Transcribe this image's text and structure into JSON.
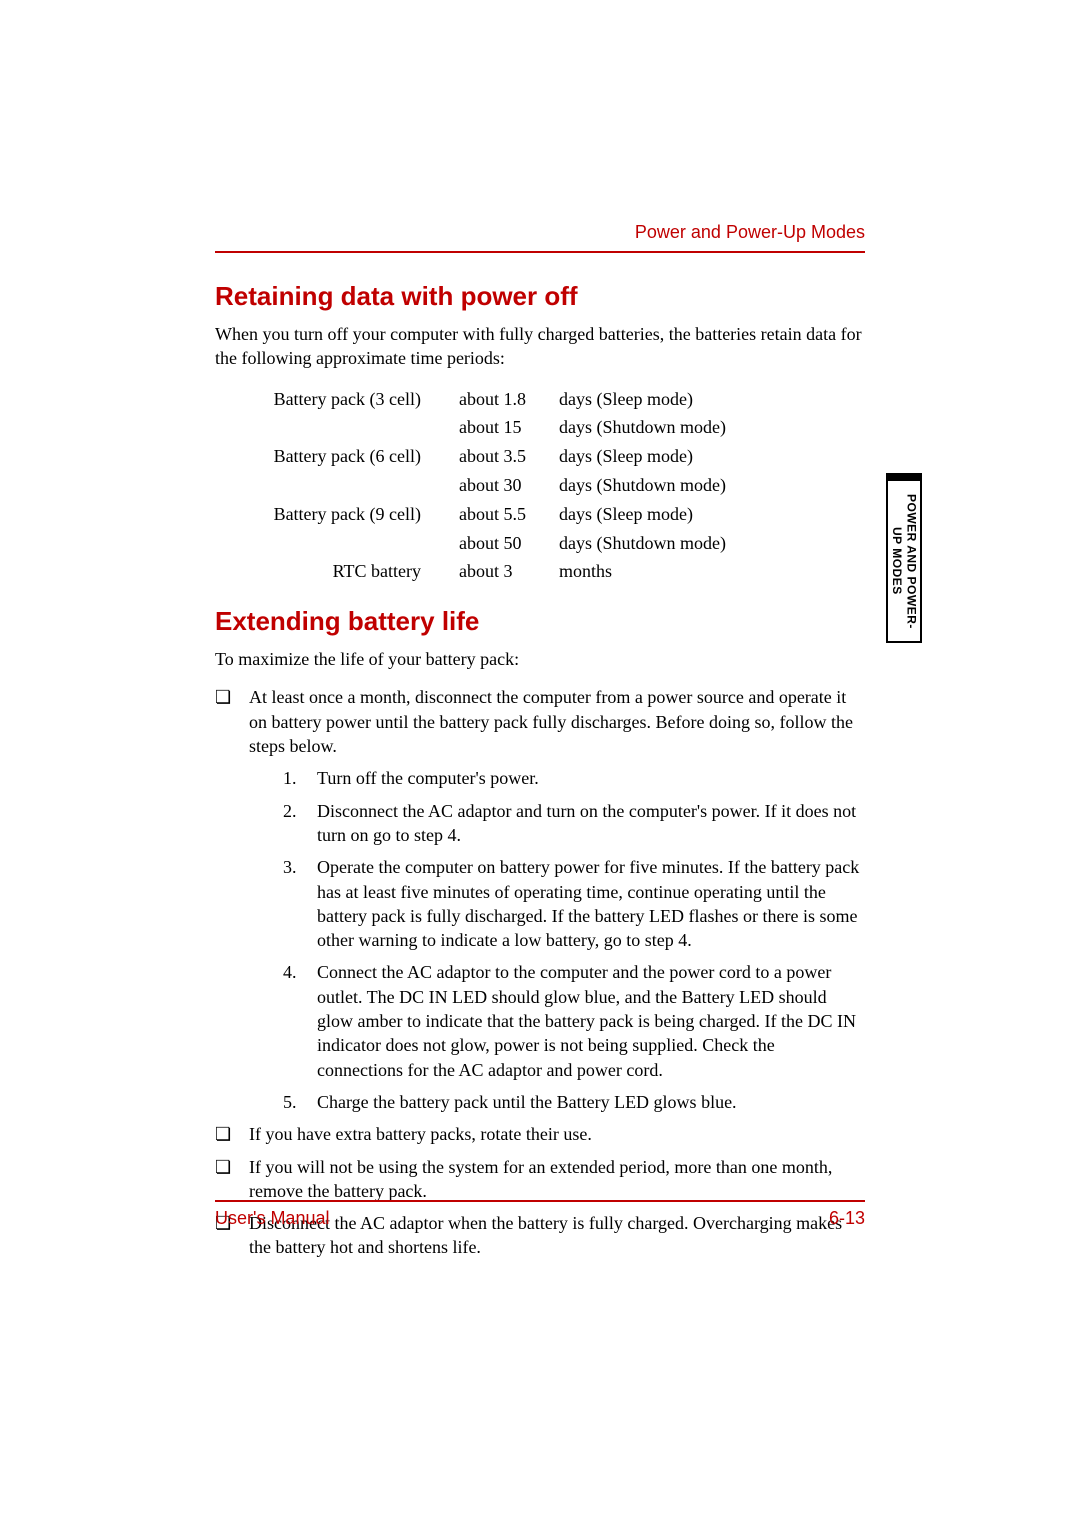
{
  "header": {
    "label": "Power and Power-Up Modes"
  },
  "section1": {
    "heading": "Retaining data with power off",
    "intro": "When you turn off your computer with fully charged batteries, the batteries retain data for the following approximate time periods:",
    "rows": [
      {
        "c1": "Battery pack (3 cell)",
        "c2": "about 1.8",
        "c3": "days (Sleep mode)"
      },
      {
        "c1": "",
        "c2": "about 15",
        "c3": "days (Shutdown mode)"
      },
      {
        "c1": "Battery pack (6 cell)",
        "c2": "about 3.5",
        "c3": "days (Sleep mode)"
      },
      {
        "c1": "",
        "c2": "about 30",
        "c3": "days (Shutdown mode)"
      },
      {
        "c1": "Battery pack (9 cell)",
        "c2": "about 5.5",
        "c3": "days (Sleep mode)"
      },
      {
        "c1": "",
        "c2": "about 50",
        "c3": "days (Shutdown mode)"
      },
      {
        "c1": "RTC battery",
        "c2": "about 3",
        "c3": "months"
      }
    ]
  },
  "section2": {
    "heading": "Extending battery life",
    "intro": "To maximize the life of your battery pack:",
    "bullets": [
      {
        "text": "At least once a month, disconnect the computer from a power source and operate it on battery power until the battery pack fully discharges. Before doing so, follow the steps below.",
        "steps": [
          "Turn off the computer's power.",
          "Disconnect the AC adaptor and turn on the computer's power. If it does not turn on go to step 4.",
          "Operate the computer on battery power for five minutes. If the battery pack has at least five minutes of operating time, continue operating until the battery pack is fully discharged. If the battery LED flashes or there is some other warning to indicate a low battery, go to step 4.",
          "Connect the AC adaptor to the computer and the power cord to a power outlet. The DC IN LED should glow blue, and the Battery LED should glow amber to indicate that the battery pack is being charged. If the DC IN indicator does not glow, power is not being supplied. Check the connections for the AC adaptor and power cord.",
          "Charge the battery pack until the Battery LED glows blue."
        ]
      },
      {
        "text": "If you have extra battery packs, rotate their use."
      },
      {
        "text": "If you will not be using the system for an extended period, more than one month, remove the battery pack."
      },
      {
        "text": "Disconnect the AC adaptor when the battery is fully charged. Overcharging makes the battery hot and shortens life."
      }
    ]
  },
  "sidetab": {
    "line1": "POWER AND POWER-",
    "line2": "UP MODES"
  },
  "footer": {
    "left": "User's Manual",
    "right": "6-13"
  },
  "colors": {
    "accent": "#c00000",
    "text": "#000000",
    "bg": "#ffffff"
  }
}
